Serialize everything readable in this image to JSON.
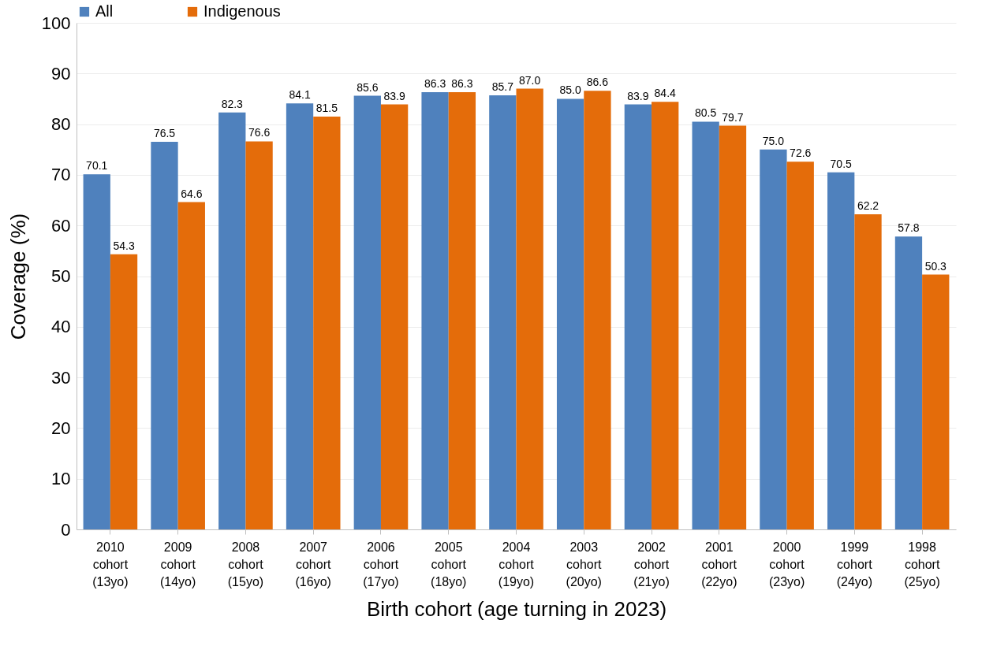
{
  "chart_data": {
    "type": "bar",
    "xlabel": "Birth cohort (age turning in 2023)",
    "ylabel": "Coverage (%)",
    "categories": [
      "2010 cohort (13yo)",
      "2009 cohort (14yo)",
      "2008 cohort (15yo)",
      "2007 cohort (16yo)",
      "2006 cohort (17yo)",
      "2005 cohort (18yo)",
      "2004 cohort (19yo)",
      "2003 cohort (20yo)",
      "2002 cohort (21yo)",
      "2001 cohort (22yo)",
      "2000 cohort (23yo)",
      "1999 cohort (24yo)",
      "1998 cohort (25yo)"
    ],
    "series": [
      {
        "name": "All",
        "color": "#4f81bd",
        "values": [
          70.1,
          76.5,
          82.3,
          84.1,
          85.6,
          86.3,
          85.7,
          85.0,
          83.9,
          80.5,
          75.0,
          70.5,
          57.8
        ],
        "value_labels": [
          "70.1",
          "76.5",
          "82.3",
          "84.1",
          "85.6",
          "86.3",
          "85.7",
          "85.0",
          "83.9",
          "80.5",
          "75.0",
          "70.5",
          "57.8"
        ]
      },
      {
        "name": "Indigenous",
        "color": "#e46c0a",
        "values": [
          54.3,
          64.6,
          76.6,
          81.5,
          83.9,
          86.3,
          87.0,
          86.6,
          84.4,
          79.7,
          72.6,
          62.2,
          50.3
        ],
        "value_labels": [
          "54.3",
          "64.6",
          "76.6",
          "81.5",
          "83.9",
          "86.3",
          "87.0",
          "86.6",
          "84.4",
          "79.7",
          "72.6",
          "62.2",
          "50.3"
        ]
      }
    ],
    "ylim": [
      0,
      100
    ],
    "yticks": [
      0,
      10,
      20,
      30,
      40,
      50,
      60,
      70,
      80,
      90,
      100
    ],
    "grid": "y",
    "legend": "top"
  }
}
